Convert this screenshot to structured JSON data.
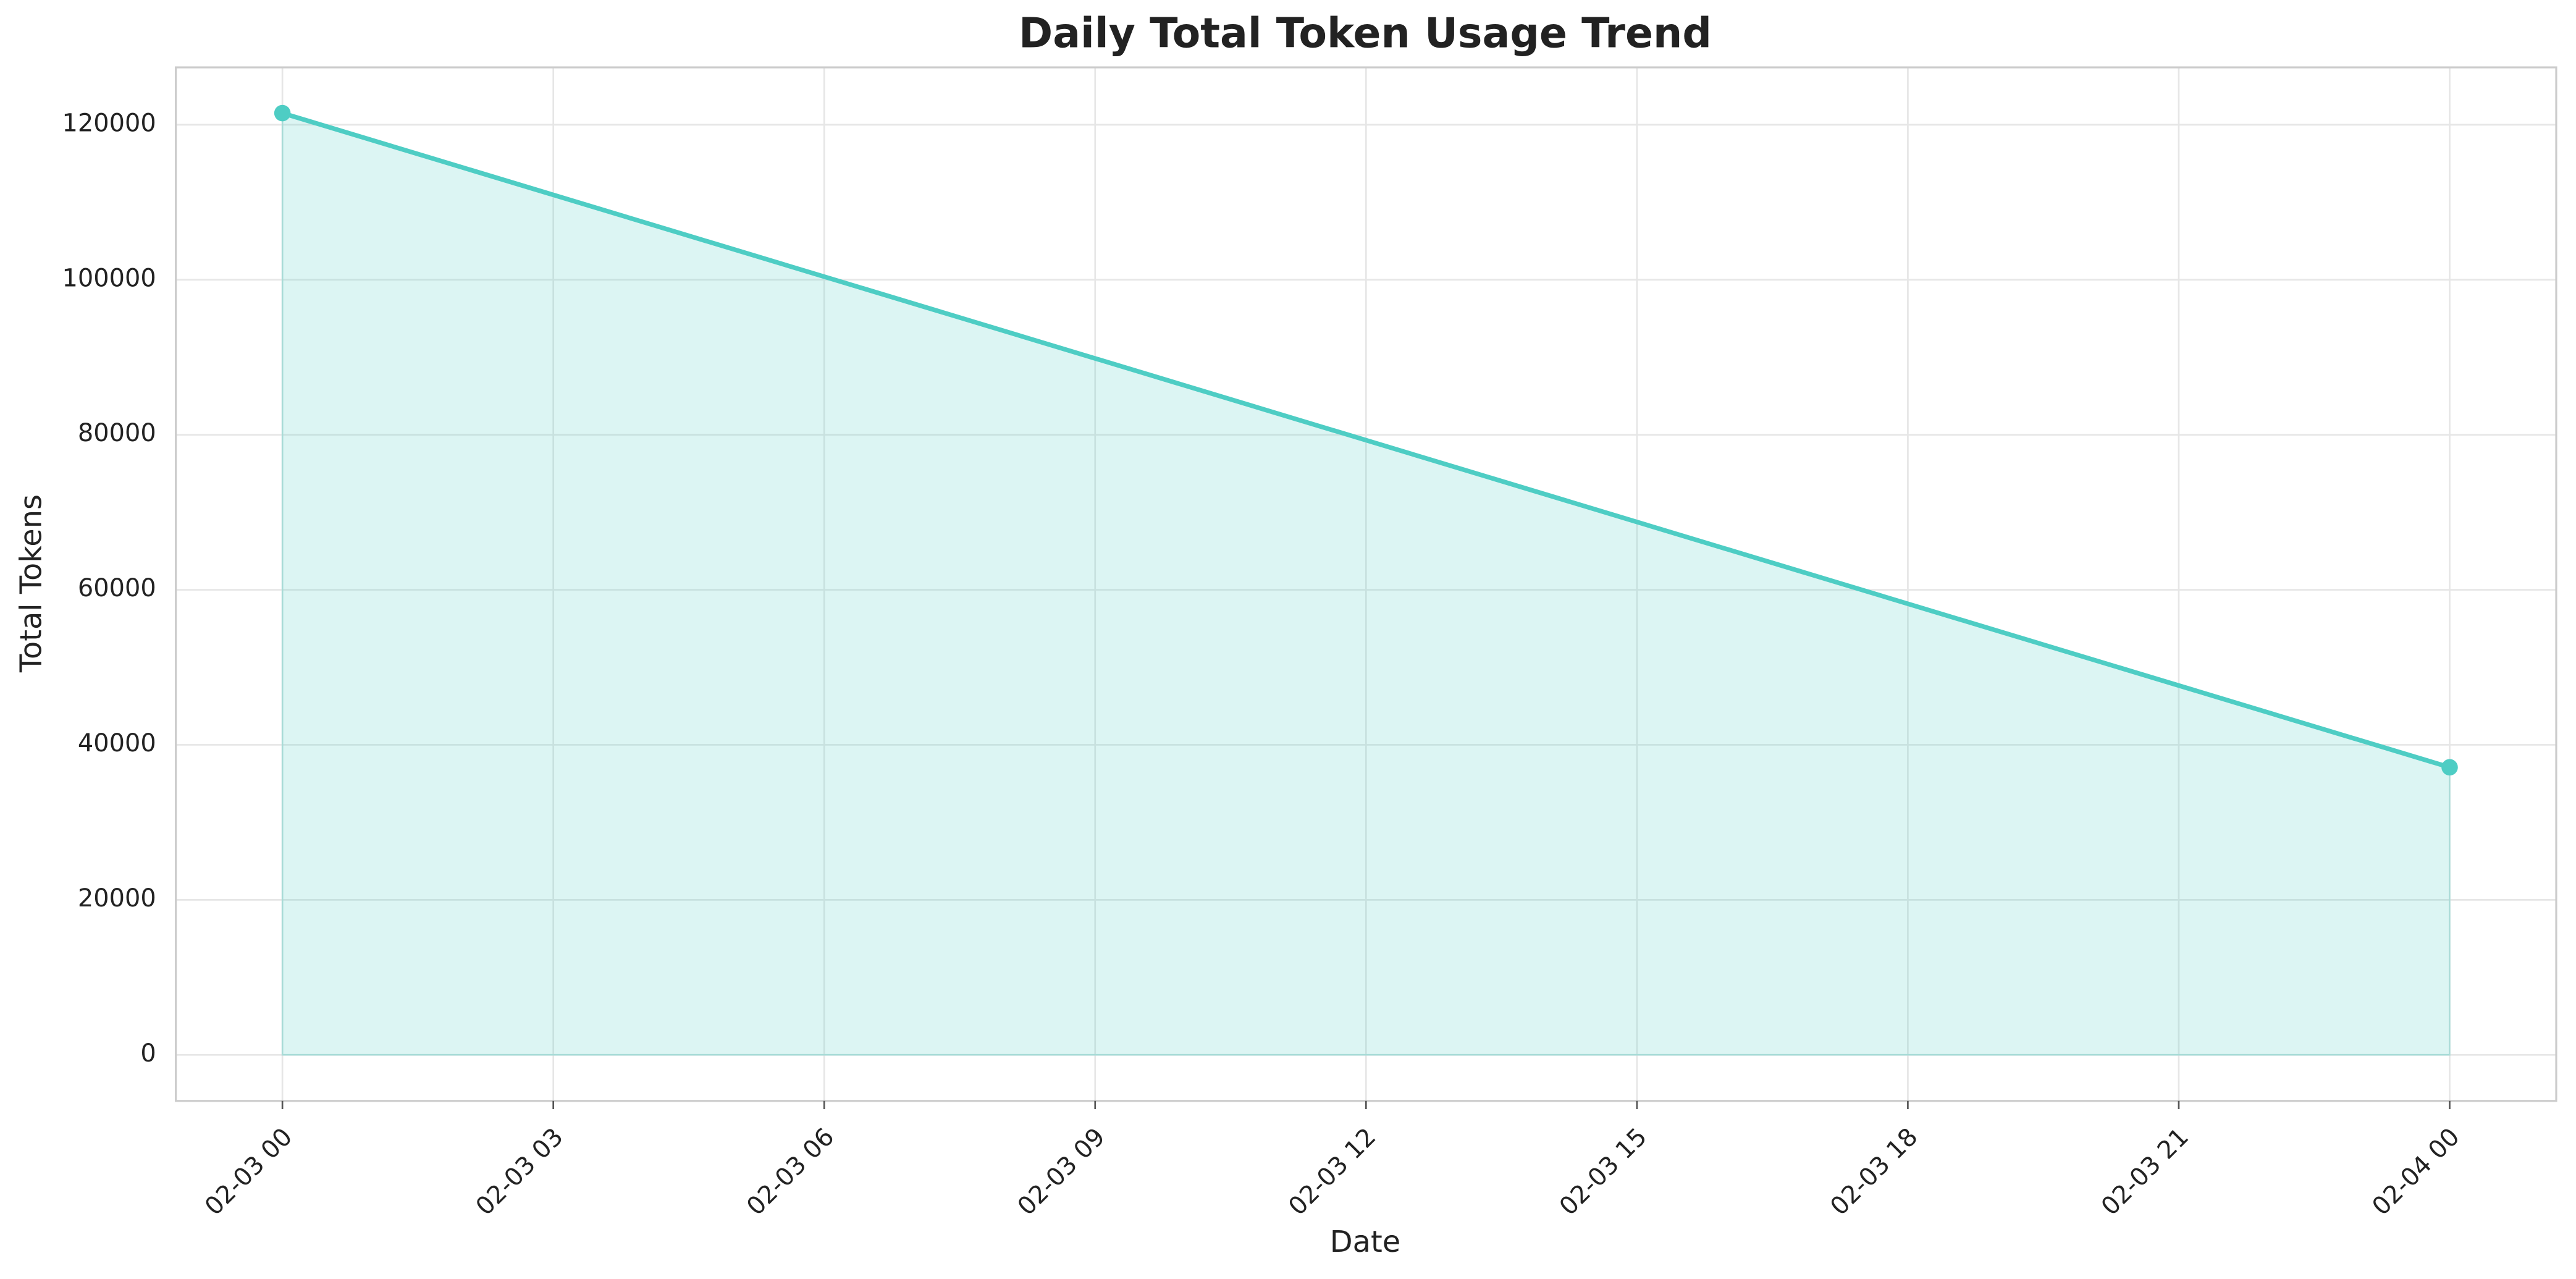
{
  "chart_data": {
    "type": "area-line",
    "title": "Daily Total Token Usage Trend",
    "xlabel": "Date",
    "ylabel": "Total Tokens",
    "x": [
      0,
      24
    ],
    "series": [
      {
        "name": "Total Tokens",
        "color": "#4ecdc4",
        "values": [
          121500,
          37100
        ]
      }
    ],
    "xlim": [
      -1.18,
      25.18
    ],
    "xticks": [
      {
        "value": 0,
        "label": "02-03 00"
      },
      {
        "value": 3,
        "label": "02-03 03"
      },
      {
        "value": 6,
        "label": "02-03 06"
      },
      {
        "value": 9,
        "label": "02-03 09"
      },
      {
        "value": 12,
        "label": "02-03 12"
      },
      {
        "value": 15,
        "label": "02-03 15"
      },
      {
        "value": 18,
        "label": "02-03 18"
      },
      {
        "value": 21,
        "label": "02-03 21"
      },
      {
        "value": 24,
        "label": "02-04 00"
      }
    ],
    "ylim": [
      -5936,
      127400
    ],
    "yticks": [
      0,
      20000,
      40000,
      60000,
      80000,
      100000,
      120000
    ],
    "grid": true
  }
}
